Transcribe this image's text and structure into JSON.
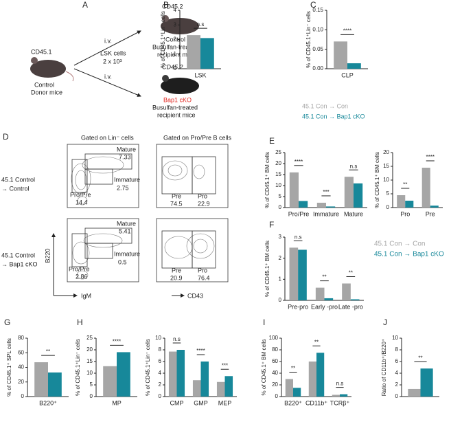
{
  "diagram": {
    "panel": "A",
    "donor": [
      "CD45.1",
      "Control",
      "Donor mice"
    ],
    "transfer": [
      "i.v.",
      "LSK cells",
      "2 x 10³",
      "i.v."
    ],
    "recipient1": [
      "CD45.2",
      "Control",
      "Busulfan-treated",
      "recipient mice"
    ],
    "recipient2": [
      "CD45.2",
      "Bap1 cKO",
      "Busulfan-treated",
      "recipient mice"
    ]
  },
  "flow": {
    "panel": "D",
    "gate_titles": [
      "Gated on Lin⁻ cells",
      "Gated on Pro/Pre B cells"
    ],
    "y_axis": "B220",
    "x_axes": [
      "IgM",
      "CD43"
    ],
    "rows": [
      {
        "label": [
          "45.1 Control",
          "→ Control"
        ],
        "gates": [
          [
            "Mature",
            7.33
          ],
          [
            "Immature",
            2.75
          ],
          [
            "Pro/Pre",
            14.4
          ],
          [
            "Pre",
            74.5
          ],
          [
            "Pro",
            22.9
          ]
        ]
      },
      {
        "label": [
          "45.1 Control",
          "→ Bap1 cKO"
        ],
        "gates": [
          [
            "Mature",
            5.41
          ],
          [
            "Immature",
            0.5
          ],
          [
            "Pro/Pre",
            2.86
          ],
          [
            "Pre",
            20.9
          ],
          [
            "Pro",
            76.4
          ]
        ]
      }
    ]
  },
  "legends": [
    [
      {
        "label": "45.1 Con → Con",
        "color": "#a6a6a6"
      },
      {
        "label": "45.1 Con → Bap1 cKO",
        "color": "#17889a"
      }
    ],
    [
      {
        "label": "45.1 Con → Con",
        "color": "#a6a6a6"
      },
      {
        "label": "45.1 Con → Bap1 cKO",
        "color": "#17889a"
      }
    ]
  ],
  "chart_data": [
    {
      "type": "bar",
      "panel": "B",
      "ylabel": "% of CD45.1⁺Lin⁻ cells",
      "categories": [
        "LSK"
      ],
      "ylim": [
        0,
        4
      ],
      "yticks": [
        0,
        1,
        2,
        3,
        4
      ],
      "annotations": [
        "n.s"
      ],
      "series": [
        {
          "color": "#a6a6a6",
          "values": [
            2.3
          ]
        },
        {
          "color": "#17889a",
          "values": [
            2.1
          ]
        }
      ]
    },
    {
      "type": "bar",
      "panel": "C",
      "ylabel": "% of CD45.1⁺Lin⁻ cells",
      "categories": [
        "CLP"
      ],
      "ylim": [
        0,
        0.15
      ],
      "yticks": [
        {
          "value": 0,
          "label": "0.00"
        },
        0.05,
        {
          "value": 0.1,
          "label": "0.10"
        },
        0.15
      ],
      "annotations": [
        "****"
      ],
      "series": [
        {
          "color": "#a6a6a6",
          "values": [
            0.07
          ]
        },
        {
          "color": "#17889a",
          "values": [
            0.014
          ]
        }
      ]
    },
    {
      "type": "bar",
      "panel": "E",
      "ylabel": "% of CD45.1⁺ BM cells",
      "categories": [
        "Pro/Pre",
        "Immature",
        "Mature"
      ],
      "ylim": [
        0,
        25
      ],
      "yticks": [
        0,
        5,
        10,
        15,
        20,
        25
      ],
      "annotations": [
        "****",
        "***",
        "n.s"
      ],
      "series": [
        {
          "color": "#a6a6a6",
          "values": [
            16,
            2.2,
            14
          ]
        },
        {
          "color": "#17889a",
          "values": [
            3,
            0.5,
            11
          ]
        }
      ]
    },
    {
      "type": "bar",
      "ylabel": "% of CD45.1⁺ BM cells",
      "categories": [
        "Pro",
        "Pre"
      ],
      "ylim": [
        0,
        20
      ],
      "yticks": [
        0,
        5,
        10,
        15,
        20
      ],
      "annotations": [
        "**",
        "****"
      ],
      "series": [
        {
          "color": "#a6a6a6",
          "values": [
            4.5,
            14.5
          ]
        },
        {
          "color": "#17889a",
          "values": [
            2.5,
            0.7
          ]
        }
      ]
    },
    {
      "type": "bar",
      "panel": "F",
      "ylabel": "% of CD45.1⁺ BM cells",
      "categories": [
        "Pre-pro",
        "Early -pro",
        "Late -pro"
      ],
      "ylim": [
        0,
        3
      ],
      "yticks": [
        0,
        1,
        2,
        3
      ],
      "annotations": [
        "n.s",
        "**",
        "**"
      ],
      "series": [
        {
          "color": "#a6a6a6",
          "values": [
            2.5,
            0.6,
            0.8
          ]
        },
        {
          "color": "#17889a",
          "values": [
            2.4,
            0.1,
            0.05
          ]
        }
      ]
    },
    {
      "type": "bar",
      "panel": "G",
      "ylabel": "% of CD45.1⁺ SPL cells",
      "categories": [
        "B220⁺"
      ],
      "ylim": [
        0,
        80
      ],
      "yticks": [
        0,
        20,
        40,
        60,
        80
      ],
      "annotations": [
        "**"
      ],
      "series": [
        {
          "color": "#a6a6a6",
          "values": [
            47
          ]
        },
        {
          "color": "#17889a",
          "values": [
            33
          ]
        }
      ]
    },
    {
      "type": "bar",
      "panel": "H",
      "ylabel": "% of CD45.1⁺Lin⁻ cells",
      "categories": [
        "MP"
      ],
      "ylim": [
        0,
        25
      ],
      "yticks": [
        0,
        5,
        10,
        15,
        20,
        25
      ],
      "annotations": [
        "****"
      ],
      "series": [
        {
          "color": "#a6a6a6",
          "values": [
            13
          ]
        },
        {
          "color": "#17889a",
          "values": [
            19
          ]
        }
      ]
    },
    {
      "type": "bar",
      "ylabel": "% of CD45.1⁺Lin⁻ cells",
      "categories": [
        "CMP",
        "GMP",
        "MEP"
      ],
      "ylim": [
        0,
        10
      ],
      "yticks": [
        0,
        2,
        4,
        6,
        8,
        10
      ],
      "annotations": [
        "n.s",
        "****",
        "***"
      ],
      "series": [
        {
          "color": "#a6a6a6",
          "values": [
            7.7,
            2.8,
            2.5
          ]
        },
        {
          "color": "#17889a",
          "values": [
            8,
            6,
            3.5
          ]
        }
      ]
    },
    {
      "type": "bar",
      "panel": "I",
      "ylabel": "% of CD45.1⁺ BM cells",
      "categories": [
        "B220⁺",
        "CD11b⁺",
        "TCRβ⁺"
      ],
      "ylim": [
        0,
        100
      ],
      "yticks": [
        0,
        20,
        40,
        60,
        80,
        100
      ],
      "annotations": [
        "**",
        "**",
        "n.s"
      ],
      "series": [
        {
          "color": "#a6a6a6",
          "values": [
            30,
            60,
            3
          ]
        },
        {
          "color": "#17889a",
          "values": [
            15,
            75,
            4
          ]
        }
      ]
    },
    {
      "type": "bar",
      "panel": "J",
      "ylabel": "Ratio of CD11b⁺/B220⁺",
      "categories": [
        null
      ],
      "ylim": [
        0,
        10
      ],
      "yticks": [
        0,
        2,
        4,
        6,
        8,
        10
      ],
      "annotations": [
        "**"
      ],
      "series": [
        {
          "color": "#a6a6a6",
          "values": [
            1.3
          ]
        },
        {
          "color": "#17889a",
          "values": [
            4.8
          ]
        }
      ]
    }
  ]
}
